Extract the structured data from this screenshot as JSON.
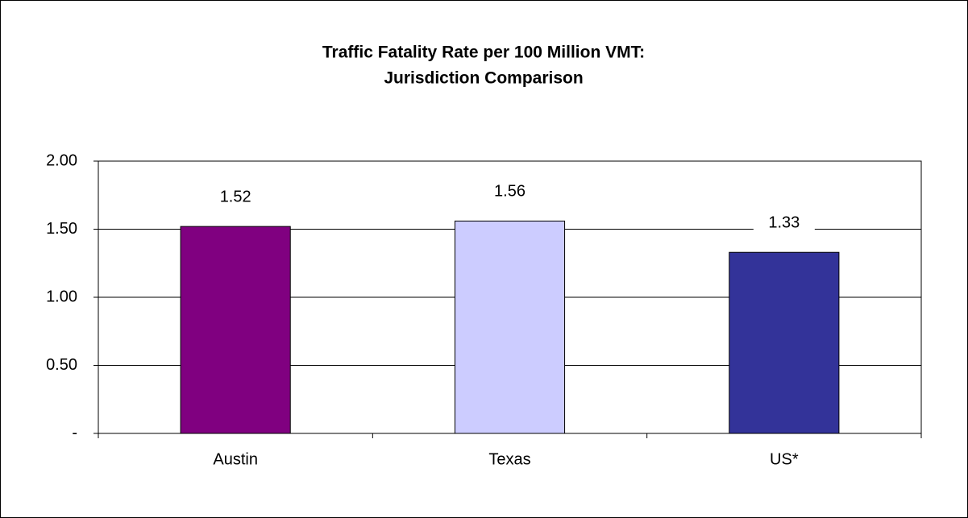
{
  "chart_data": {
    "type": "bar",
    "title": [
      "Traffic Fatality  Rate per 100 Million  VMT:",
      "Jurisdiction  Comparison"
    ],
    "categories": [
      "Austin",
      "Texas",
      "US*"
    ],
    "values": [
      1.52,
      1.56,
      1.33
    ],
    "colors": [
      "#800080",
      "#ccccff",
      "#333399"
    ],
    "ylim": [
      0,
      2
    ],
    "yticks": [
      {
        "value": 0,
        "label": "-"
      },
      {
        "value": 0.5,
        "label": "0.50"
      },
      {
        "value": 1,
        "label": "1.00"
      },
      {
        "value": 1.5,
        "label": "1.50"
      },
      {
        "value": 2,
        "label": "2.00"
      }
    ],
    "grid": true
  }
}
